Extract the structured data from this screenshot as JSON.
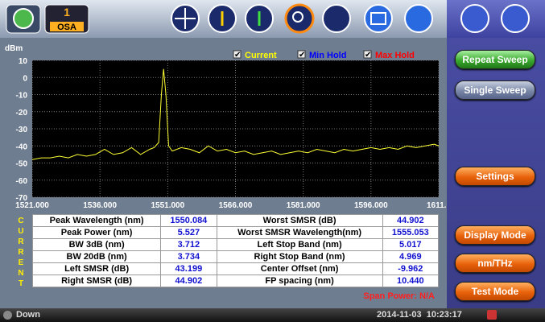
{
  "toolbar": {
    "instrument_number": "1",
    "instrument_label": "OSA"
  },
  "chart_data": {
    "type": "line",
    "y_label": "dBm",
    "legend": [
      "Current",
      "Min Hold",
      "Max Hold"
    ],
    "legend_colors": [
      "#ffff00",
      "#0000ff",
      "#ff0000"
    ],
    "series": [
      {
        "name": "Current",
        "color": "#ffff33",
        "x": [
          1521,
          1523,
          1525,
          1527,
          1529,
          1531,
          1533,
          1535,
          1537,
          1539,
          1541,
          1543,
          1545,
          1547,
          1548,
          1549,
          1549.6,
          1550.084,
          1550.6,
          1551.2,
          1552,
          1554,
          1556,
          1558,
          1560,
          1562,
          1564,
          1566,
          1568,
          1570,
          1572,
          1574,
          1576,
          1578,
          1580,
          1582,
          1584,
          1586,
          1588,
          1590,
          1592,
          1594,
          1596,
          1598,
          1600,
          1602,
          1604,
          1606,
          1608,
          1610,
          1611
        ],
        "values": [
          -48,
          -47,
          -47,
          -46,
          -47,
          -45,
          -46,
          -45,
          -42,
          -45,
          -44,
          -41,
          -45,
          -42,
          -41,
          -38,
          -10,
          5,
          -10,
          -40,
          -43,
          -41,
          -42,
          -44,
          -40,
          -43,
          -42,
          -44,
          -43,
          -45,
          -44,
          -43,
          -45,
          -44,
          -43,
          -44,
          -42,
          -43,
          -44,
          -42,
          -43,
          -42,
          -41,
          -42,
          -41,
          -42,
          -40,
          -41,
          -40,
          -39,
          -40
        ]
      }
    ],
    "xlim": [
      1521,
      1611
    ],
    "xticks": [
      {
        "value": 1521,
        "label": "1521.000"
      },
      {
        "value": 1536,
        "label": "1536.000"
      },
      {
        "value": 1551,
        "label": "1551.000"
      },
      {
        "value": 1566,
        "label": "1566.000"
      },
      {
        "value": 1581,
        "label": "1581.000"
      },
      {
        "value": 1596,
        "label": "1596.000"
      },
      {
        "value": 1611,
        "label": "1611.0"
      }
    ],
    "ylim": [
      -70,
      10
    ],
    "yticks": [
      10,
      0,
      -10,
      -20,
      -30,
      -40,
      -50,
      -60,
      -70
    ],
    "grid": true
  },
  "side_label": "CURRENT",
  "table": {
    "rows": [
      [
        "Peak Wavelength (nm)",
        "1550.084",
        "Worst SMSR (dB)",
        "44.902"
      ],
      [
        "Peak Power (nm)",
        "5.527",
        "Worst SMSR Wavelength(nm)",
        "1555.053"
      ],
      [
        "BW 3dB (nm)",
        "3.712",
        "Left Stop Band (nm)",
        "5.017"
      ],
      [
        "BW 20dB (nm)",
        "3.734",
        "Right Stop Band (nm)",
        "4.969"
      ],
      [
        "Left SMSR (dB)",
        "43.199",
        "Center Offset (nm)",
        "-9.962"
      ],
      [
        "Right SMSR (dB)",
        "44.902",
        "FP spacing (nm)",
        "10.440"
      ]
    ]
  },
  "span_power": "Span Power: N/A",
  "buttons": [
    "Repeat Sweep",
    "Single Sweep",
    "Settings",
    "Display Mode",
    "nm/THz",
    "Test Mode"
  ],
  "status": {
    "state": "Down",
    "datetime": "2014-11-03  10:23:17"
  }
}
